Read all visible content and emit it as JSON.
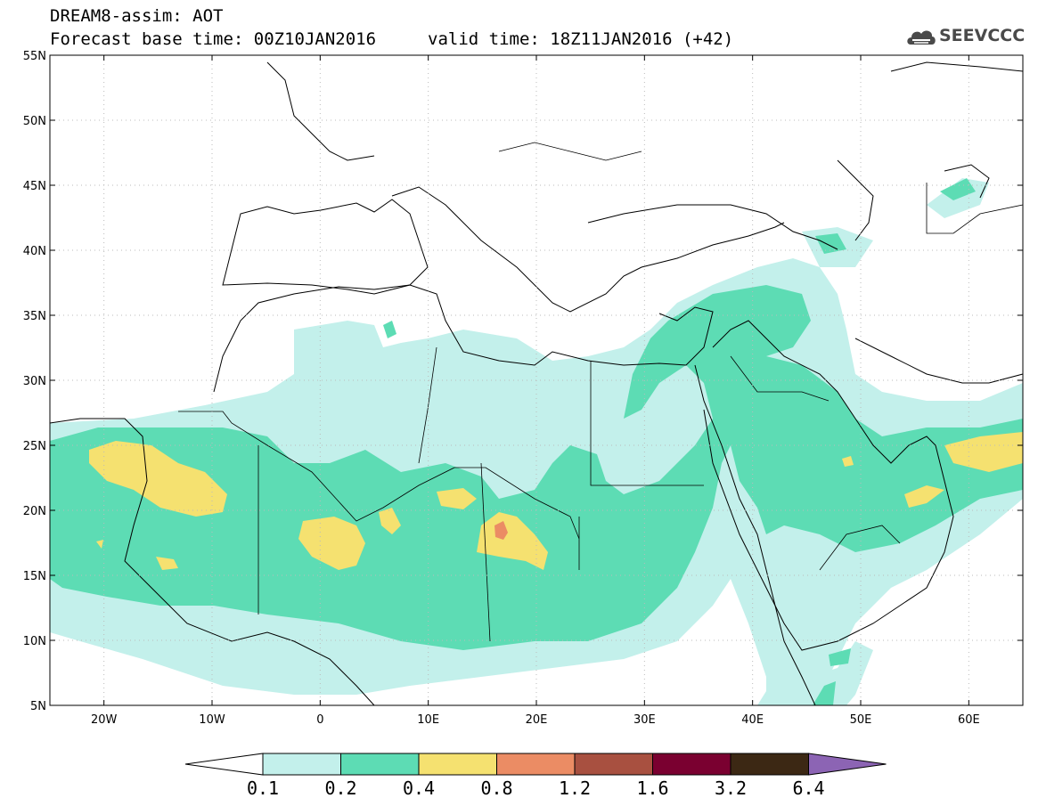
{
  "header": {
    "title": "DREAM8-assim: AOT",
    "base_time": "Forecast base time: 00Z10JAN2016",
    "valid_time": "valid time: 18Z11JAN2016 (+42)"
  },
  "logo": {
    "text": "SEEVCCC",
    "icon": "cloud-logo-icon",
    "color": "#4a4a4a"
  },
  "map": {
    "lon_range": [
      -25,
      65
    ],
    "lat_range": [
      5,
      55
    ],
    "lat_ticks": [
      "5N",
      "10N",
      "15N",
      "20N",
      "25N",
      "30N",
      "35N",
      "40N",
      "45N",
      "50N",
      "55N"
    ],
    "lon_ticks": [
      "20W",
      "10W",
      "0",
      "10E",
      "20E",
      "30E",
      "40E",
      "50E",
      "60E"
    ],
    "grid": "dotted",
    "land_outline_color": "#000000"
  },
  "colorbar": {
    "labels": [
      "0.1",
      "0.2",
      "0.4",
      "0.8",
      "1.2",
      "1.6",
      "3.2",
      "6.4"
    ],
    "colors": [
      "#c3f0eb",
      "#5ddcb4",
      "#f5e170",
      "#eb8c64",
      "#a85040",
      "#7a0030",
      "#3c2814",
      "#8c64b4"
    ],
    "below_color": "#ffffff"
  }
}
